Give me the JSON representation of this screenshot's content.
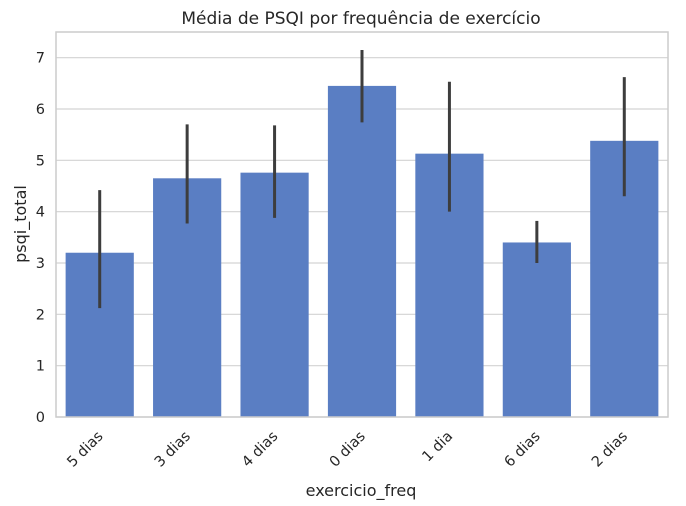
{
  "chart_data": {
    "type": "bar",
    "title": "Média de PSQI por frequência de exercício",
    "xlabel": "exercicio_freq",
    "ylabel": "psqi_total",
    "categories": [
      "5 dias",
      "3 dias",
      "4 dias",
      "0 dias",
      "1 dia",
      "6 dias",
      "2 dias"
    ],
    "values": [
      3.2,
      4.65,
      4.76,
      6.45,
      5.13,
      3.4,
      5.38
    ],
    "error_low": [
      2.12,
      3.77,
      3.88,
      5.74,
      4.0,
      3.0,
      4.3
    ],
    "error_high": [
      4.42,
      5.7,
      5.68,
      7.15,
      6.53,
      3.82,
      6.62
    ],
    "ylim": [
      0,
      7.5
    ],
    "yticks": [
      0,
      1,
      2,
      3,
      4,
      5,
      6,
      7
    ],
    "grid": "horizontal",
    "colors": {
      "bar": "#5a7ec3",
      "error": "#3d3d3d",
      "grid": "#d3d3d3",
      "spine": "#cccccc",
      "text": "#262626"
    }
  }
}
